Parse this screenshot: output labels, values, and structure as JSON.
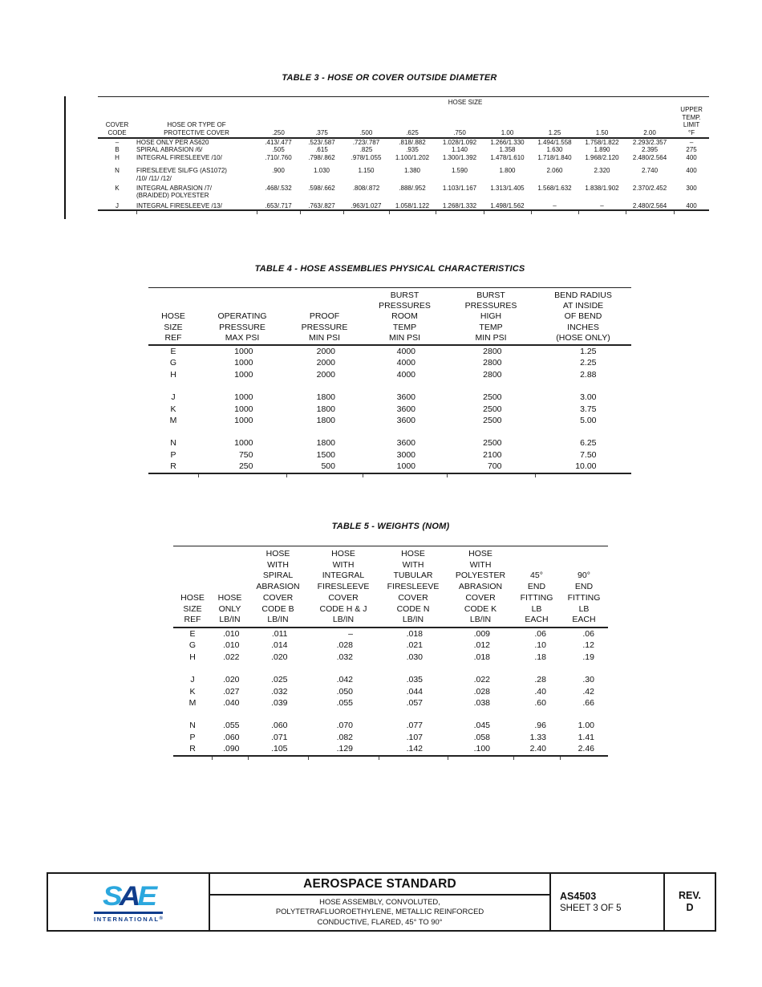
{
  "colors": {
    "sae_light_blue": "#2BA7DE",
    "sae_navy": "#103D8C",
    "rule_black": "#222222"
  },
  "table3": {
    "title": "TABLE 3 - HOSE OR COVER OUTSIDE DIAMETER",
    "hose_size_label": "HOSE SIZE",
    "col_headers": [
      "COVER\nCODE",
      "HOSE OR TYPE OF\nPROTECTIVE COVER",
      ".250",
      ".375",
      ".500",
      ".625",
      ".750",
      "1.00",
      "1.25",
      "1.50",
      "2.00",
      "UPPER\nTEMP.\nLIMIT\n°F"
    ],
    "rows": [
      [
        "–",
        "HOSE ONLY PER AS620",
        ".413/.477",
        ".523/.587",
        ".723/.787",
        ".818/.882",
        "1.028/1.092",
        "1.266/1.330",
        "1.494/1.558",
        "1.758/1.822",
        "2.293/2.357",
        "–"
      ],
      [
        "B",
        "SPIRAL ABRASION /6/",
        ".505",
        ".615",
        ".825",
        ".935",
        "1.140",
        "1.358",
        "1.630",
        "1.890",
        "2.395",
        "275"
      ],
      [
        "H",
        "INTEGRAL FIRESLEEVE /10/",
        ".710/.760",
        ".798/.862",
        ".978/1.055",
        "1.100/1.202",
        "1.300/1.392",
        "1.478/1.610",
        "1.718/1.840",
        "1.968/2.120",
        "2.480/2.564",
        "400"
      ],
      "SPACER",
      [
        "N",
        "FIRESLEEVE SIL/FG (AS1072)\n/10/ /11/ /12/",
        ".900",
        "1.030",
        "1.150",
        "1.380",
        "1.590",
        "1.800",
        "2.060",
        "2.320",
        "2.740",
        "400"
      ],
      "SPACER_SM",
      [
        "K",
        "INTEGRAL ABRASION /7/\n(BRAIDED) POLYESTER",
        ".468/.532",
        ".598/.662",
        ".808/.872",
        ".888/.952",
        "1.103/1.167",
        "1.313/1.405",
        "1.568/1.632",
        "1.838/1.902",
        "2.370/2.452",
        "300"
      ],
      "SPACER_SM",
      [
        "J",
        "INTEGRAL FIRESLEEVE /13/",
        ".653/.717",
        ".763/.827",
        ".963/1.027",
        "1.058/1.122",
        "1.268/1.332",
        "1.498/1.562",
        "–",
        "–",
        "2.480/2.564",
        "400"
      ]
    ]
  },
  "table4": {
    "title": "TABLE 4 - HOSE ASSEMBLIES PHYSICAL CHARACTERISTICS",
    "col_headers": [
      "HOSE\nSIZE\nREF",
      "OPERATING\nPRESSURE\nMAX PSI",
      "PROOF\nPRESSURE\nMIN PSI",
      "BURST\nPRESSURES\nROOM\nTEMP\nMIN PSI",
      "BURST\nPRESSURES\nHIGH\nTEMP\nMIN PSI",
      "BEND RADIUS\nAT INSIDE\nOF BEND\nINCHES\n(HOSE ONLY)"
    ],
    "rows": [
      [
        "E",
        "1000",
        "2000",
        "4000",
        "2800",
        "1.25"
      ],
      [
        "G",
        "1000",
        "2000",
        "4000",
        "2800",
        "2.25"
      ],
      [
        "H",
        "1000",
        "2000",
        "4000",
        "2800",
        "2.88"
      ],
      "SPACER",
      [
        "J",
        "1000",
        "1800",
        "3600",
        "2500",
        "3.00"
      ],
      [
        "K",
        "1000",
        "1800",
        "3600",
        "2500",
        "3.75"
      ],
      [
        "M",
        "1000",
        "1800",
        "3600",
        "2500",
        "5.00"
      ],
      "SPACER",
      [
        "N",
        "1000",
        "1800",
        "3600",
        "2500",
        "6.25"
      ],
      [
        "P",
        "750",
        "1500",
        "3000",
        "2100",
        "7.50"
      ],
      [
        "R",
        "250",
        "500",
        "1000",
        "700",
        "10.00"
      ]
    ]
  },
  "table5": {
    "title": "TABLE 5 - WEIGHTS (NOM)",
    "col_headers": [
      "HOSE\nSIZE\nREF",
      "HOSE\nONLY\nLB/IN",
      "HOSE\nWITH\nSPIRAL\nABRASION\nCOVER\nCODE B\nLB/IN",
      "HOSE\nWITH\nINTEGRAL\nFIRESLEEVE\nCOVER\nCODE H & J\nLB/IN",
      "HOSE\nWITH\nTUBULAR\nFIRESLEEVE\nCOVER\nCODE N\nLB/IN",
      "HOSE\nWITH\nPOLYESTER\nABRASION\nCOVER\nCODE K\nLB/IN",
      "45°\nEND\nFITTING\nLB\nEACH",
      "90°\nEND\nFITTING\nLB\nEACH"
    ],
    "rows": [
      [
        "E",
        ".010",
        ".011",
        "–",
        ".018",
        ".009",
        ".06",
        ".06"
      ],
      [
        "G",
        ".010",
        ".014",
        ".028",
        ".021",
        ".012",
        ".10",
        ".12"
      ],
      [
        "H",
        ".022",
        ".020",
        ".032",
        ".030",
        ".018",
        ".18",
        ".19"
      ],
      "SPACER",
      [
        "J",
        ".020",
        ".025",
        ".042",
        ".035",
        ".022",
        ".28",
        ".30"
      ],
      [
        "K",
        ".027",
        ".032",
        ".050",
        ".044",
        ".028",
        ".40",
        ".42"
      ],
      [
        "M",
        ".040",
        ".039",
        ".055",
        ".057",
        ".038",
        ".60",
        ".66"
      ],
      "SPACER",
      [
        "N",
        ".055",
        ".060",
        ".070",
        ".077",
        ".045",
        ".96",
        "1.00"
      ],
      [
        "P",
        ".060",
        ".071",
        ".082",
        ".107",
        ".058",
        "1.33",
        "1.41"
      ],
      [
        "R",
        ".090",
        ".105",
        ".129",
        ".142",
        ".100",
        "2.40",
        "2.46"
      ]
    ]
  },
  "footer": {
    "logo": {
      "s": "S",
      "a": "A",
      "e": "E",
      "international": "INTERNATIONAL",
      "reg": "®"
    },
    "title": "AEROSPACE STANDARD",
    "subtitle_lines": [
      "HOSE ASSEMBLY, CONVOLUTED,",
      "POLYTETRAFLUOROETHYLENE, METALLIC REINFORCED",
      "CONDUCTIVE, FLARED, 45° TO 90°"
    ],
    "doc_number": "AS4503",
    "sheet": "SHEET 3 OF 5",
    "rev_label": "REV.",
    "rev_value": "D"
  }
}
